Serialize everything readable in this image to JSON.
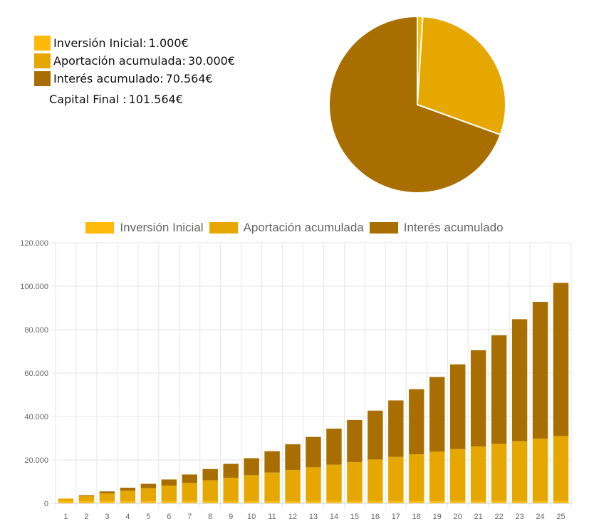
{
  "colors": {
    "inversion_inicial": "#FDBA09",
    "aportacion_acumulada": "#E6A800",
    "interes_acumulado": "#A86F00"
  },
  "summary": {
    "items": [
      {
        "label": "Inversión Inicial:",
        "value": "1.000€"
      },
      {
        "label": "Aportación acumulada:",
        "value": "30.000€"
      },
      {
        "label": "Interés acumulado:",
        "value": "70.564€"
      }
    ],
    "capital": {
      "label": "Capital Final :",
      "value": "101.564€"
    }
  },
  "chart_data": [
    {
      "type": "pie",
      "labels": [
        "Inversión Inicial",
        "Aportación acumulada",
        "Interés acumulado"
      ],
      "values": [
        1000,
        30000,
        70564
      ]
    },
    {
      "type": "bar",
      "stacked": true,
      "categories": [
        "1",
        "2",
        "3",
        "4",
        "5",
        "6",
        "7",
        "8",
        "9",
        "10",
        "11",
        "12",
        "13",
        "14",
        "15",
        "16",
        "17",
        "18",
        "19",
        "20",
        "21",
        "22",
        "23",
        "24",
        "25"
      ],
      "series": [
        {
          "name": "Inversión Inicial",
          "values": [
            1000,
            1000,
            1000,
            1000,
            1000,
            1000,
            1000,
            1000,
            1000,
            1000,
            1000,
            1000,
            1000,
            1000,
            1000,
            1000,
            1000,
            1000,
            1000,
            1000,
            1000,
            1000,
            1000,
            1000,
            1000
          ]
        },
        {
          "name": "Aportación acumulada",
          "values": [
            1200,
            2400,
            3600,
            4800,
            6000,
            7200,
            8400,
            9600,
            10800,
            12000,
            13200,
            14400,
            15600,
            16800,
            18000,
            19200,
            20400,
            21600,
            22800,
            24000,
            25200,
            26400,
            27600,
            28800,
            30000
          ]
        },
        {
          "name": "Interés acumulado",
          "values": [
            0,
            400,
            900,
            1400,
            2000,
            2800,
            3900,
            5200,
            6400,
            7800,
            9800,
            11800,
            14000,
            16600,
            19400,
            22500,
            26000,
            30000,
            34400,
            39000,
            44300,
            50000,
            56200,
            63000,
            70564
          ]
        }
      ],
      "yticks": [
        "0",
        "20.000",
        "40.000",
        "60.000",
        "80.000",
        "100.000",
        "120.000"
      ],
      "ylim": [
        0,
        120000
      ],
      "grid": true,
      "legend": "top"
    }
  ]
}
